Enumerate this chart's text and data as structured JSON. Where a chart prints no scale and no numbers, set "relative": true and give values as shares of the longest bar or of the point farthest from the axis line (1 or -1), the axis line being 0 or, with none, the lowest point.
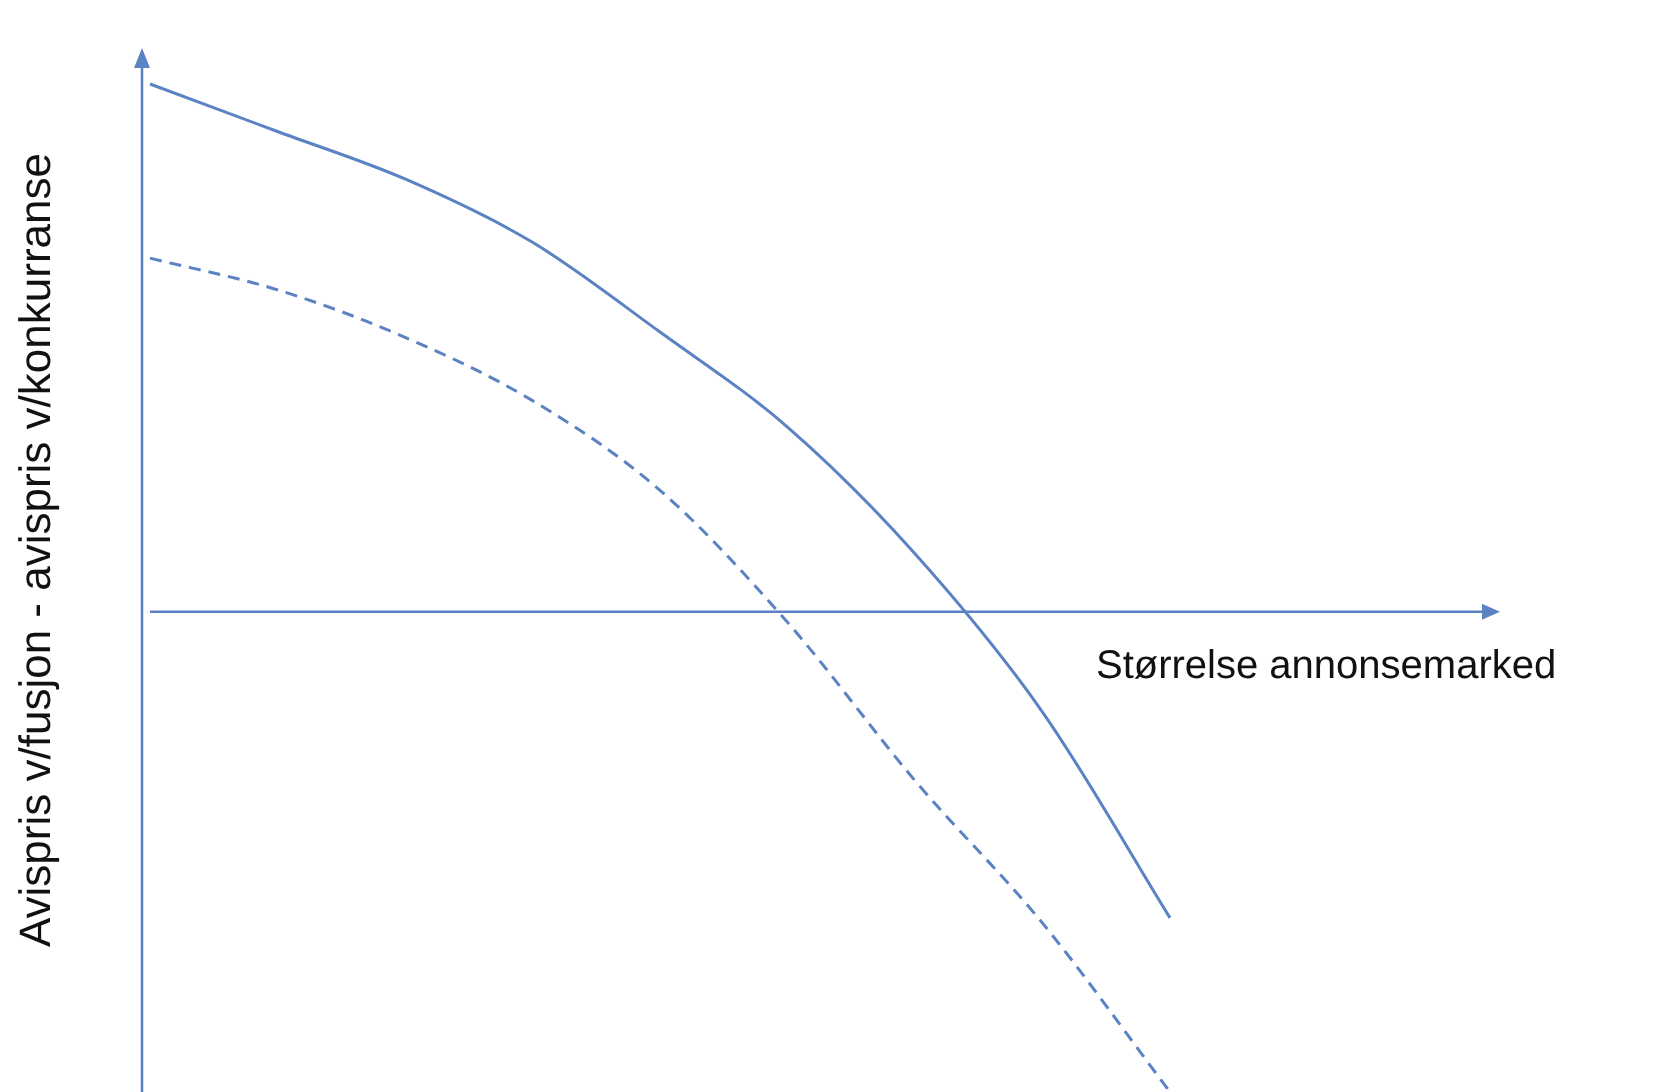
{
  "chart_data": {
    "type": "line",
    "relative": true,
    "xlabel": "Størrelse annonsemarked",
    "ylabel": "Avispris v/fusjon -  avispris v/konkurranse",
    "categories": [
      null,
      null,
      null,
      null,
      null,
      null,
      null,
      null,
      null
    ],
    "legend": false,
    "marker": "none",
    "ref_lines": [
      {
        "axis": "y",
        "value": 0
      }
    ],
    "series": [
      {
        "color": "#5b82c2",
        "line_style": "solid",
        "values": [
          1,
          0.91,
          0.82,
          0.7,
          0.53,
          0.35,
          0.11,
          -0.19,
          -0.58
        ]
      },
      {
        "color": "#5b82c2",
        "line_style": "dashed",
        "values": [
          0.67,
          0.61,
          0.52,
          0.4,
          0.23,
          -0.02,
          -0.32,
          -0.59,
          -0.91
        ]
      }
    ]
  }
}
